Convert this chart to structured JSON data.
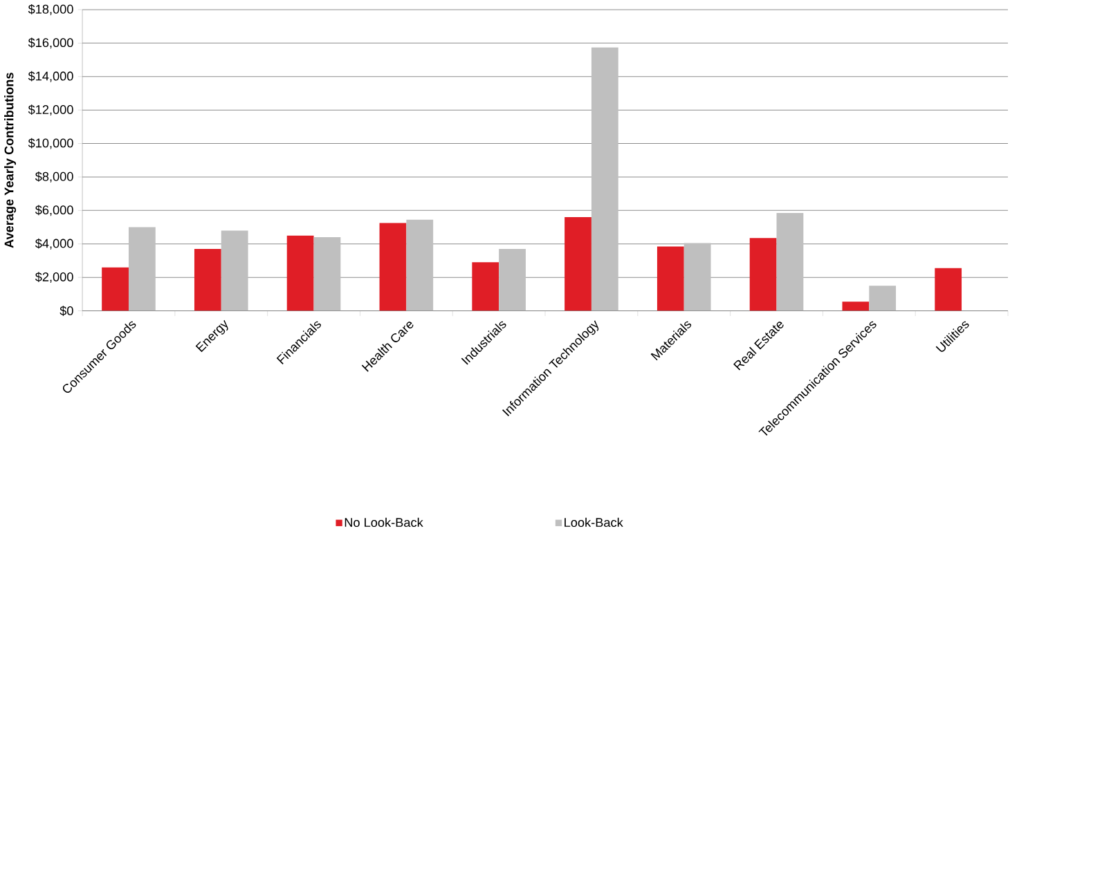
{
  "chart_data": {
    "type": "bar",
    "ylabel": "Average Yearly Contributions",
    "categories": [
      "Consumer Goods",
      "Energy",
      "Financials",
      "Health Care",
      "Industrials",
      "Information Technology",
      "Materials",
      "Real Estate",
      "Telecommunication Services",
      "Utilities"
    ],
    "series": [
      {
        "name": "No Look-Back",
        "color": "#e01e26",
        "values": [
          2600,
          3700,
          4500,
          5250,
          2900,
          5600,
          3850,
          4350,
          550,
          2550
        ]
      },
      {
        "name": "Look-Back",
        "color": "#bfbfbf",
        "values": [
          5000,
          4800,
          4400,
          5450,
          3700,
          15750,
          4050,
          5850,
          1500,
          null
        ]
      }
    ],
    "ylim": [
      0,
      18000
    ],
    "yticks": [
      {
        "value": 0,
        "label": "$0"
      },
      {
        "value": 2000,
        "label": "$2,000"
      },
      {
        "value": 4000,
        "label": "$4,000"
      },
      {
        "value": 6000,
        "label": "$6,000"
      },
      {
        "value": 8000,
        "label": "$8,000"
      },
      {
        "value": 10000,
        "label": "$10,000"
      },
      {
        "value": 12000,
        "label": "$12,000"
      },
      {
        "value": 14000,
        "label": "$14,000"
      },
      {
        "value": 16000,
        "label": "$16,000"
      },
      {
        "value": 18000,
        "label": "$18,000"
      }
    ],
    "grid": "y",
    "legend": "bottom"
  }
}
